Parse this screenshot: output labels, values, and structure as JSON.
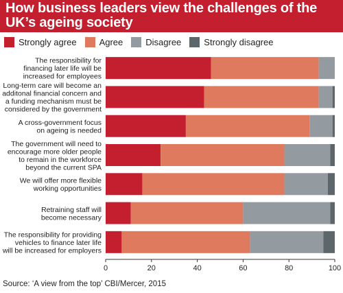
{
  "title": "How business leaders view the challenges of the UK’s ageing society",
  "source": "Source: ‘A view from the top’ CBI/Mercer, 2015",
  "colors": {
    "title_bg": "#c41f2e",
    "strongly_agree": "#c41f2e",
    "agree": "#e07a5f",
    "disagree": "#939aa0",
    "strongly_disagree": "#5c666b"
  },
  "legend": [
    {
      "label": "Strongly agree",
      "color": "#c41f2e"
    },
    {
      "label": "Agree",
      "color": "#e07a5f"
    },
    {
      "label": "Disagree",
      "color": "#939aa0"
    },
    {
      "label": "Strongly disagree",
      "color": "#5c666b"
    }
  ],
  "chart_data": {
    "type": "bar",
    "orientation": "horizontal",
    "stacked": true,
    "xlabel": "%",
    "xlim": [
      0,
      100
    ],
    "xticks": [
      0,
      20,
      40,
      60,
      80,
      100
    ],
    "grid": false,
    "legend_position": "top-left",
    "categories": [
      [
        "The responsibility for",
        "financing later life will be",
        "increased for employees"
      ],
      [
        "Long-term care will become an",
        "additonal financial concern and",
        "a funding mechanism must be",
        "considered by the government"
      ],
      [
        "A cross-government focus",
        "on ageing is needed"
      ],
      [
        "The government will need to",
        "encourage more older people",
        "to remain in the workforce",
        "beyond the current SPA"
      ],
      [
        "We will offer more flexible",
        "working opportunities"
      ],
      [
        "Retraining staff will",
        "become necessary"
      ],
      [
        "The responsibility for providing",
        "vehicles to finance later life",
        "will be increased for employers"
      ]
    ],
    "series": [
      {
        "name": "Strongly agree",
        "values": [
          46,
          43,
          35,
          24,
          16,
          11,
          7
        ]
      },
      {
        "name": "Agree",
        "values": [
          47,
          50,
          54,
          54,
          62,
          49,
          56
        ]
      },
      {
        "name": "Disagree",
        "values": [
          7,
          6,
          10,
          20,
          19,
          38,
          32
        ]
      },
      {
        "name": "Strongly disagree",
        "values": [
          0,
          1,
          1,
          2,
          3,
          2,
          5
        ]
      }
    ]
  }
}
